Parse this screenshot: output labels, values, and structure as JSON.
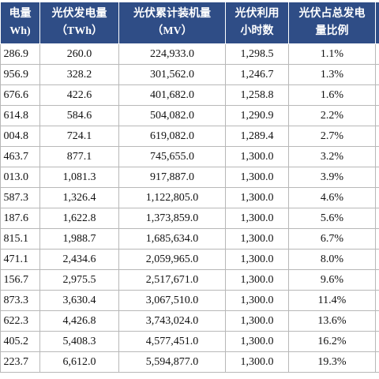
{
  "table": {
    "header": [
      [
        "电量",
        "Wh)"
      ],
      [
        "光伏发电量",
        "（TWh）"
      ],
      [
        "光伏累计装机量",
        "（MV）"
      ],
      [
        "光伏利用",
        "小时数"
      ],
      [
        "光伏占总发电",
        "量比例"
      ]
    ],
    "rows": [
      [
        "286.9",
        "260.0",
        "224,933.0",
        "1,298.5",
        "1.1%"
      ],
      [
        "956.9",
        "328.2",
        "301,562.0",
        "1,246.7",
        "1.3%"
      ],
      [
        "676.6",
        "422.6",
        "401,682.0",
        "1,258.8",
        "1.6%"
      ],
      [
        "614.8",
        "584.6",
        "504,082.0",
        "1,290.9",
        "2.2%"
      ],
      [
        "004.8",
        "724.1",
        "619,082.0",
        "1,289.4",
        "2.7%"
      ],
      [
        "463.7",
        "877.1",
        "745,655.0",
        "1,300.0",
        "3.2%"
      ],
      [
        "013.0",
        "1,081.3",
        "917,887.0",
        "1,300.0",
        "3.9%"
      ],
      [
        "587.3",
        "1,326.4",
        "1,122,805.0",
        "1,300.0",
        "4.6%"
      ],
      [
        "187.6",
        "1,622.8",
        "1,373,859.0",
        "1,300.0",
        "5.6%"
      ],
      [
        "815.1",
        "1,988.7",
        "1,685,634.0",
        "1,300.0",
        "6.7%"
      ],
      [
        "471.1",
        "2,434.6",
        "2,059,965.0",
        "1,300.0",
        "8.0%"
      ],
      [
        "156.7",
        "2,975.5",
        "2,517,671.0",
        "1,300.0",
        "9.6%"
      ],
      [
        "873.3",
        "3,630.4",
        "3,067,510.0",
        "1,300.0",
        "11.4%"
      ],
      [
        "622.3",
        "4,426.8",
        "3,743,024.0",
        "1,300.0",
        "13.6%"
      ],
      [
        "405.2",
        "5,408.3",
        "4,577,451.0",
        "1,300.0",
        "16.2%"
      ],
      [
        "223.7",
        "6,612.0",
        "5,594,877.0",
        "1,300.0",
        "19.3%"
      ]
    ]
  }
}
